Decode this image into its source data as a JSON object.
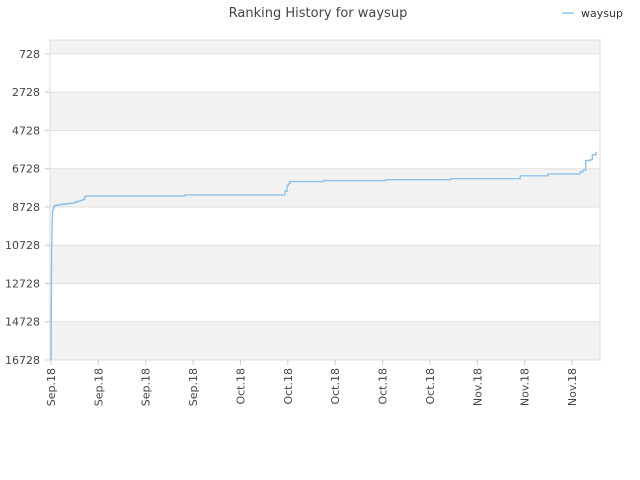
{
  "chart_data": {
    "type": "line",
    "title": "Ranking History for waysup",
    "xlabel": "",
    "ylabel": "",
    "y_inverted": true,
    "ylim": [
      16728,
      0
    ],
    "yticks": [
      728,
      2728,
      4728,
      6728,
      8728,
      10728,
      12728,
      14728,
      16728
    ],
    "x_tick_labels": [
      "Sep.18",
      "Sep.18",
      "Sep.18",
      "Sep.18",
      "Oct.18",
      "Oct.18",
      "Oct.18",
      "Oct.18",
      "Oct.18",
      "Nov.18",
      "Nov.18",
      "Nov.18"
    ],
    "grid": true,
    "legend_position": "top-right",
    "colors": {
      "series": "#8ec2ea",
      "band": "#f2f2f2",
      "grid": "#e0e0e0",
      "axis": "#cccccc"
    },
    "series": [
      {
        "name": "waysup",
        "x": [
          0.0,
          0.02,
          0.04,
          0.06,
          0.08,
          0.1,
          0.12,
          0.14,
          0.16,
          0.2,
          0.3,
          0.4,
          0.5,
          0.6,
          0.7,
          0.8,
          0.9,
          1.0,
          1.2,
          1.6,
          2.0,
          2.6,
          3.2,
          3.6,
          4.0,
          4.4,
          4.6,
          4.8,
          5.0,
          5.2,
          5.3,
          5.5,
          6.0,
          7.0,
          8.0,
          9.0,
          10.0,
          10.2,
          11.0,
          12.0,
          14.0,
          16.0,
          18.0,
          18.4,
          20.0,
          22.0,
          24.0,
          26.0,
          28.0,
          30.0,
          32.0,
          32.1,
          32.4,
          32.6,
          32.8,
          33.0,
          34.0,
          36.0,
          37.0,
          37.4,
          38.0,
          40.0,
          42.0,
          44.0,
          45.4,
          46.0,
          48.0,
          50.0,
          52.0,
          54.0,
          54.8,
          56.0,
          58.0,
          60.0,
          62.0,
          63.8,
          64.4,
          66.0,
          68.0,
          68.2,
          70.0,
          72.0,
          72.6,
          73.0,
          73.4,
          74.0,
          74.3,
          74.8
        ],
        "values": [
          16700,
          15000,
          13500,
          12000,
          10800,
          10600,
          10200,
          9800,
          9300,
          8900,
          8800,
          8700,
          8650,
          8650,
          8650,
          8640,
          8630,
          8620,
          8600,
          8580,
          8560,
          8530,
          8480,
          8430,
          8380,
          8330,
          8200,
          8150,
          8150,
          8150,
          8150,
          8150,
          8150,
          8150,
          8150,
          8150,
          8150,
          8150,
          8150,
          8150,
          8150,
          8150,
          8150,
          8100,
          8100,
          8100,
          8100,
          8100,
          8100,
          8100,
          8100,
          7900,
          7600,
          7500,
          7400,
          7400,
          7400,
          7400,
          7400,
          7350,
          7350,
          7350,
          7350,
          7350,
          7350,
          7300,
          7300,
          7300,
          7300,
          7300,
          7250,
          7250,
          7250,
          7250,
          7250,
          7250,
          7100,
          7100,
          7100,
          7000,
          7000,
          7000,
          6900,
          6800,
          6300,
          6250,
          6000,
          5850
        ]
      }
    ]
  }
}
